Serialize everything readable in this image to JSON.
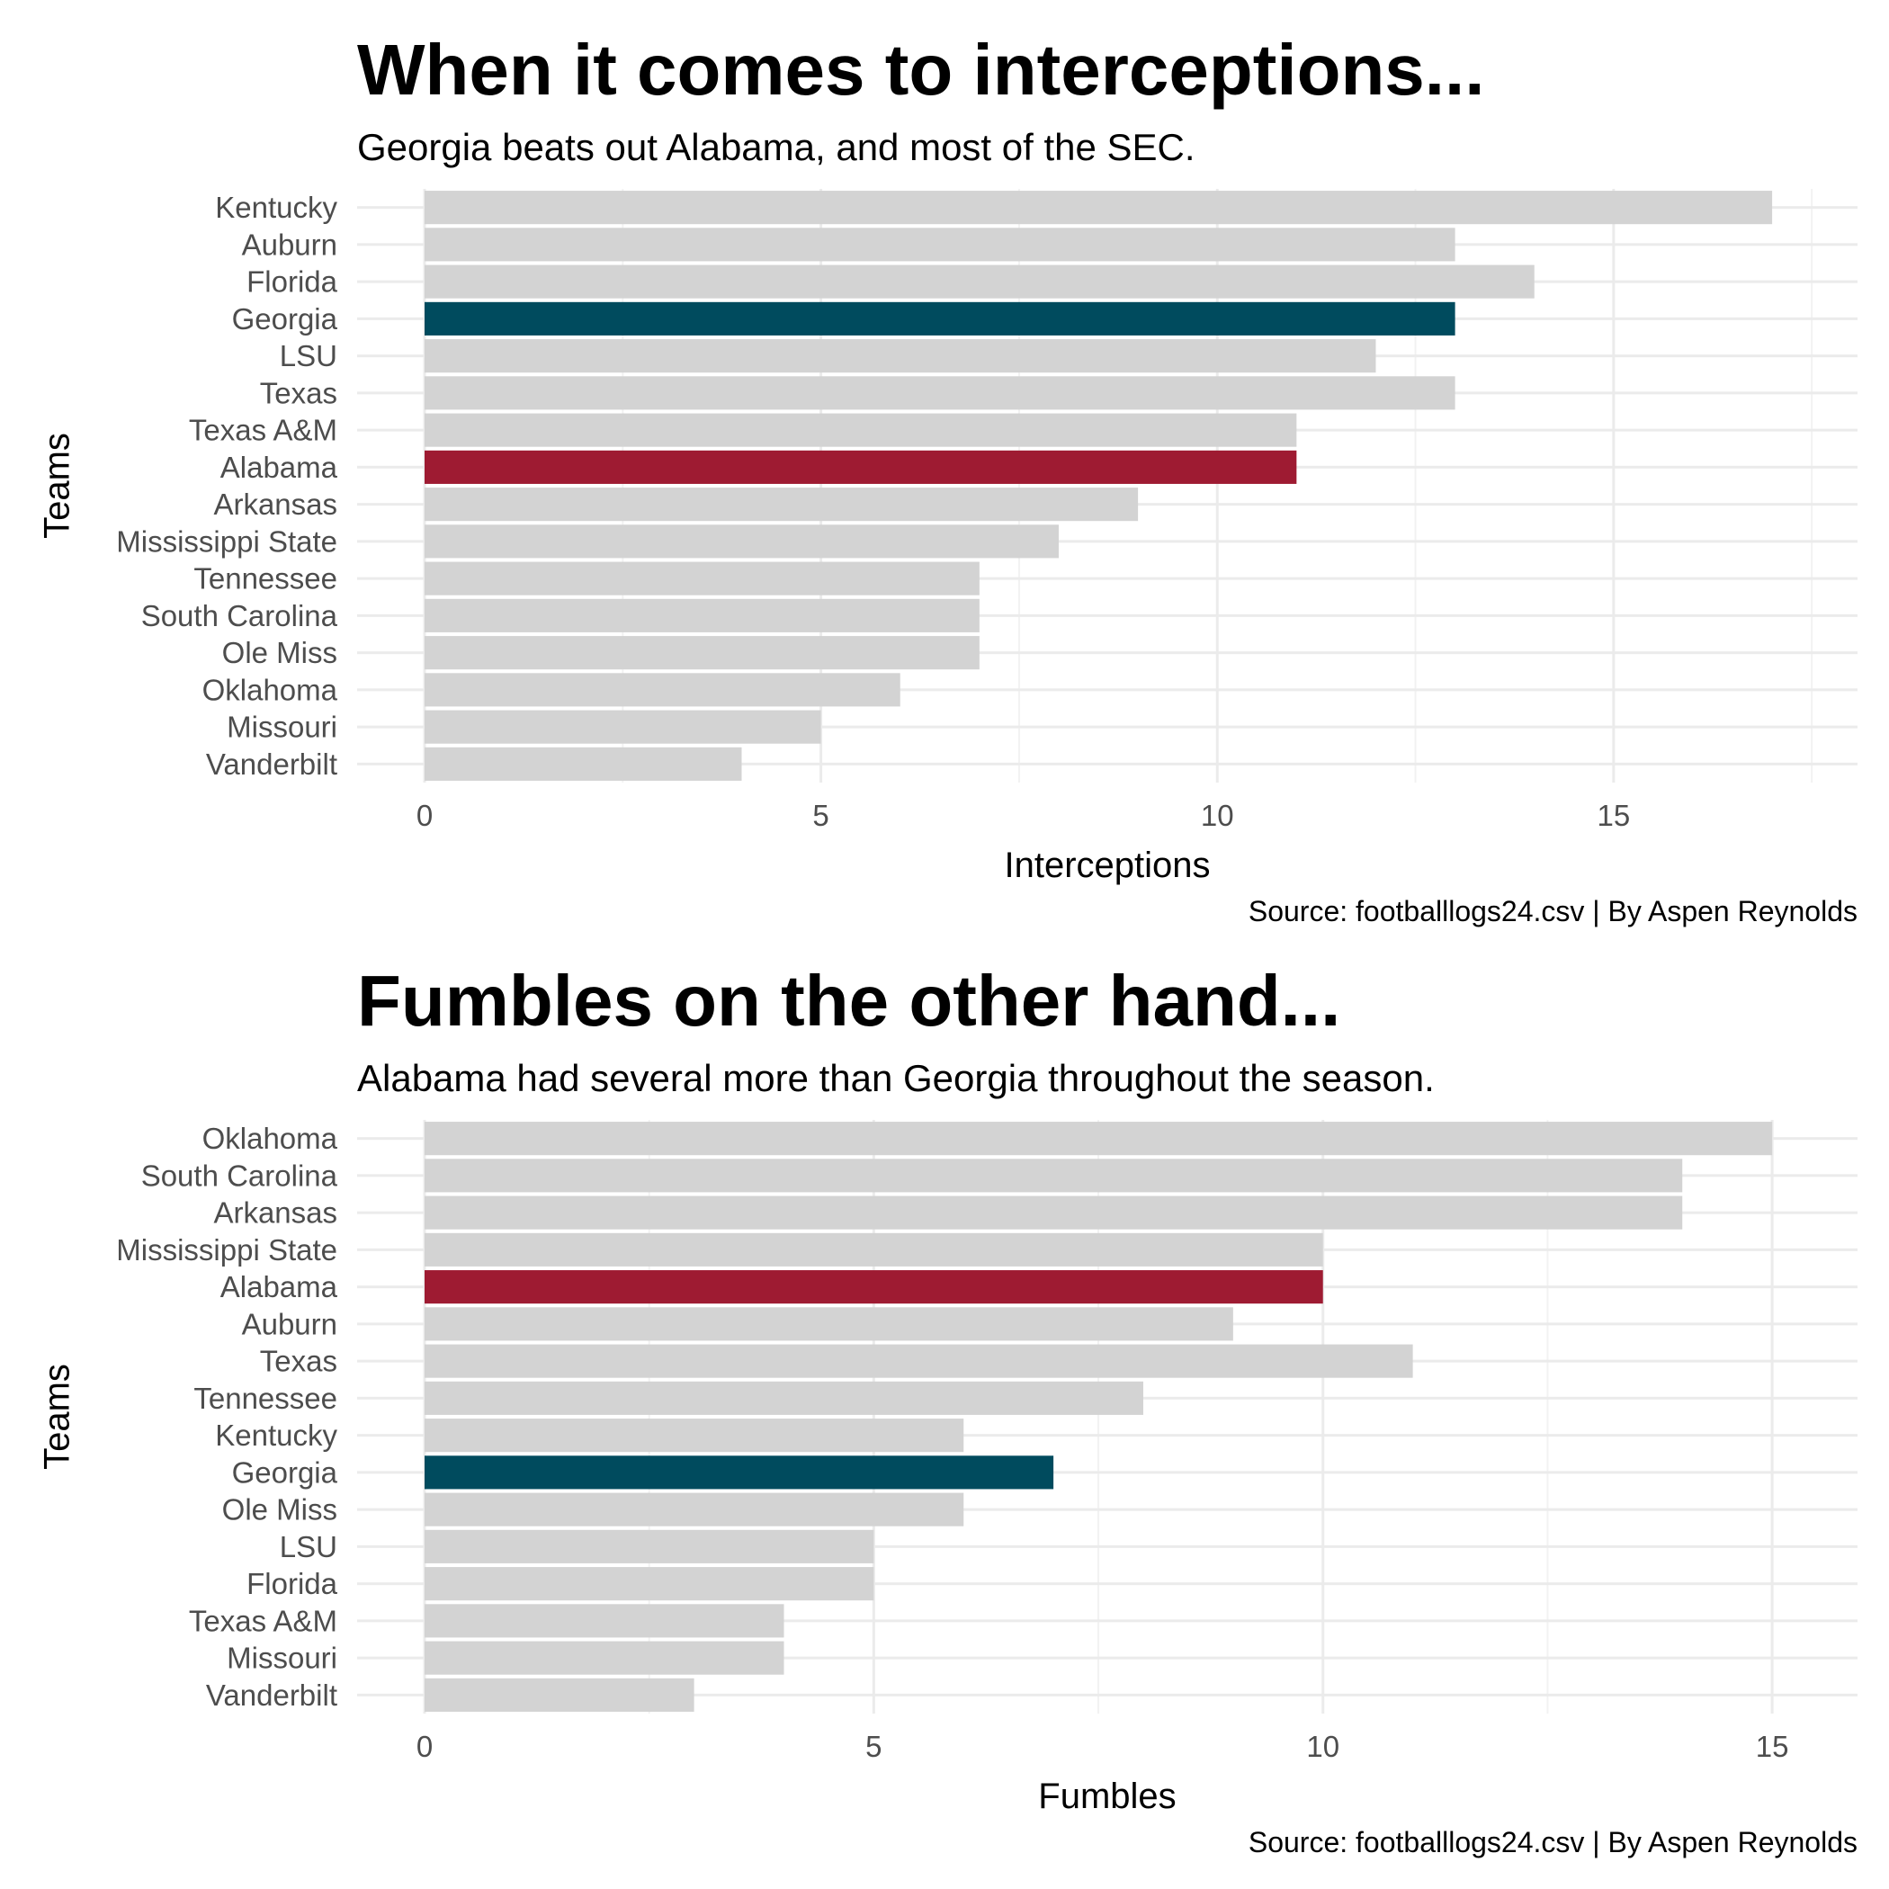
{
  "chart_data": [
    {
      "type": "bar",
      "orientation": "horizontal",
      "title": "When it comes to interceptions...",
      "subtitle": "Georgia beats out Alabama, and most of the SEC.",
      "caption": "Source: footballlogs24.csv | By Aspen Reynolds",
      "xlabel": "Interceptions",
      "ylabel": "Teams",
      "xlim": [
        0,
        17.85
      ],
      "xticks": [
        0,
        5,
        10,
        15
      ],
      "grid": true,
      "legend": "none",
      "categories": [
        "Kentucky",
        "Auburn",
        "Florida",
        "Georgia",
        "LSU",
        "Texas",
        "Texas A&M",
        "Alabama",
        "Arkansas",
        "Mississippi State",
        "Tennessee",
        "South Carolina",
        "Ole Miss",
        "Oklahoma",
        "Missouri",
        "Vanderbilt"
      ],
      "values": [
        17,
        13,
        14,
        13,
        12,
        13,
        11,
        11,
        9,
        8,
        7,
        7,
        7,
        6,
        5,
        4
      ],
      "colors": {
        "default": "#d3d3d3",
        "Georgia": "#004b5e",
        "Alabama": "#9e1b32"
      }
    },
    {
      "type": "bar",
      "orientation": "horizontal",
      "title": "Fumbles on the other hand...",
      "subtitle": "Alabama had several more than Georgia throughout the season.",
      "caption": "Source: footballlogs24.csv | By Aspen Reynolds",
      "xlabel": "Fumbles",
      "ylabel": "Teams",
      "xlim": [
        0,
        15.75
      ],
      "xticks": [
        0,
        5,
        10,
        15
      ],
      "grid": true,
      "legend": "none",
      "categories": [
        "Oklahoma",
        "South Carolina",
        "Arkansas",
        "Mississippi State",
        "Alabama",
        "Auburn",
        "Texas",
        "Tennessee",
        "Kentucky",
        "Georgia",
        "Ole Miss",
        "LSU",
        "Florida",
        "Texas A&M",
        "Missouri",
        "Vanderbilt"
      ],
      "values": [
        15,
        14,
        14,
        10,
        10,
        9,
        11,
        8,
        6,
        7,
        6,
        5,
        5,
        4,
        4,
        3
      ],
      "colors": {
        "default": "#d3d3d3",
        "Georgia": "#004b5e",
        "Alabama": "#9e1b32"
      }
    }
  ]
}
